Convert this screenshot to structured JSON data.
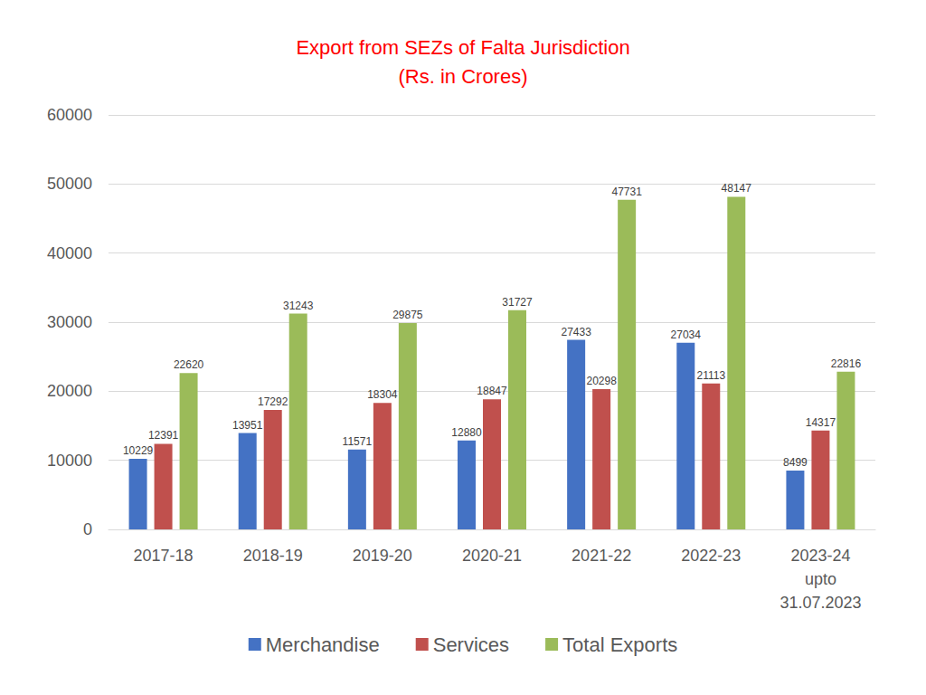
{
  "chart_data": {
    "type": "bar",
    "title": "Export from SEZs of Falta Jurisdiction",
    "subtitle": "(Rs. in Crores)",
    "categories": [
      "2017-18",
      "2018-19",
      "2019-20",
      "2020-21",
      "2021-22",
      "2022-23",
      "2023-24\nupto\n31.07.2023"
    ],
    "series": [
      {
        "name": "Merchandise",
        "color": "#4472c4",
        "values": [
          10229,
          13951,
          11571,
          12880,
          27433,
          27034,
          8499
        ]
      },
      {
        "name": "Services",
        "color": "#c0504d",
        "values": [
          12391,
          17292,
          18304,
          18847,
          20298,
          21113,
          14317
        ]
      },
      {
        "name": "Total Exports",
        "color": "#9bbb59",
        "values": [
          22620,
          31243,
          29875,
          31727,
          47731,
          48147,
          22816
        ]
      }
    ],
    "ylim": [
      0,
      60000
    ],
    "yticks": [
      0,
      10000,
      20000,
      30000,
      40000,
      50000,
      60000
    ],
    "grid": true,
    "legend": "bottom",
    "data_labels": true
  }
}
